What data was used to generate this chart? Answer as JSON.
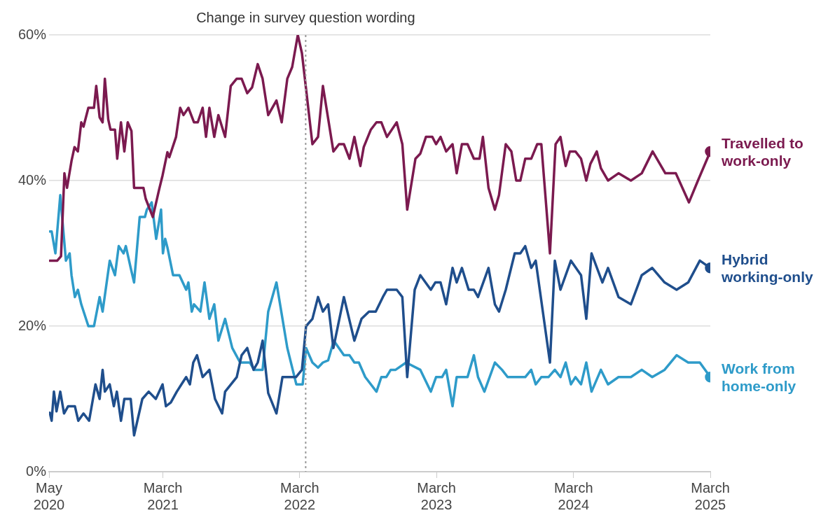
{
  "chart_data": {
    "type": "line",
    "xlim": [
      "2020-05-01",
      "2025-03-01"
    ],
    "xticks": [
      {
        "value": "2020-05-01",
        "label": "May 2020"
      },
      {
        "value": "2021-03-01",
        "label": "March 2021"
      },
      {
        "value": "2022-03-01",
        "label": "March 2022"
      },
      {
        "value": "2023-03-01",
        "label": "March 2023"
      },
      {
        "value": "2024-03-01",
        "label": "March 2024"
      },
      {
        "value": "2025-03-01",
        "label": "March 2025"
      }
    ],
    "ylim": [
      0,
      60
    ],
    "yticks": [
      {
        "value": 0,
        "label": "0%"
      },
      {
        "value": 20,
        "label": "20%"
      },
      {
        "value": 40,
        "label": "40%"
      },
      {
        "value": 60,
        "label": "60%"
      }
    ],
    "grid": "y",
    "legend": false,
    "ref_lines": [
      {
        "axis": "x",
        "value": "2022-03-17",
        "label": "Change in survey question wording",
        "color": "#999999",
        "line_style": "dotted"
      }
    ],
    "series": [
      {
        "name": "Travelled to work-only",
        "color": "#7b1a4f",
        "x": [
          "2020-05-03",
          "2020-05-23",
          "2020-06-02",
          "2020-06-11",
          "2020-06-18",
          "2020-06-30",
          "2020-07-08",
          "2020-07-17",
          "2020-07-26",
          "2020-08-01",
          "2020-08-14",
          "2020-08-29",
          "2020-09-04",
          "2020-09-13",
          "2020-09-21",
          "2020-09-27",
          "2020-10-06",
          "2020-10-12",
          "2020-10-24",
          "2020-10-30",
          "2020-11-09",
          "2020-11-18",
          "2020-11-27",
          "2020-12-07",
          "2020-12-14",
          "2021-01-08",
          "2021-01-14",
          "2021-02-02",
          "2021-02-11",
          "2021-02-19",
          "2021-02-28",
          "2021-03-13",
          "2021-03-18",
          "2021-04-05",
          "2021-04-16",
          "2021-04-25",
          "2021-05-08",
          "2021-05-23",
          "2021-06-02",
          "2021-06-15",
          "2021-06-24",
          "2021-07-03",
          "2021-07-16",
          "2021-07-27",
          "2021-08-14",
          "2021-08-29",
          "2021-09-14",
          "2021-09-27",
          "2021-10-12",
          "2021-10-25",
          "2021-11-09",
          "2021-11-22",
          "2021-12-07",
          "2021-12-29",
          "2022-01-12",
          "2022-01-27",
          "2022-02-09",
          "2022-02-24",
          "2022-03-07",
          "2022-04-04",
          "2022-04-19",
          "2022-05-02",
          "2022-05-30",
          "2022-06-14",
          "2022-06-27",
          "2022-07-12",
          "2022-07-25",
          "2022-08-10",
          "2022-08-19",
          "2022-09-07",
          "2022-09-22",
          "2022-10-05",
          "2022-10-20",
          "2022-11-15",
          "2022-11-30",
          "2022-12-13",
          "2023-01-04",
          "2023-01-17",
          "2023-02-01",
          "2023-02-18",
          "2023-02-28",
          "2023-03-12",
          "2023-03-27",
          "2023-04-13",
          "2023-04-24",
          "2023-05-08",
          "2023-05-23",
          "2023-06-09",
          "2023-06-24",
          "2023-07-03",
          "2023-07-18",
          "2023-08-04",
          "2023-08-15",
          "2023-09-02",
          "2023-09-17",
          "2023-09-30",
          "2023-10-11",
          "2023-10-24",
          "2023-11-09",
          "2023-11-25",
          "2023-12-06",
          "2023-12-29",
          "2024-01-13",
          "2024-01-26",
          "2024-02-09",
          "2024-02-20",
          "2024-03-06",
          "2024-03-21",
          "2024-04-04",
          "2024-04-15",
          "2024-05-02",
          "2024-05-13",
          "2024-06-01",
          "2024-06-29",
          "2024-08-01",
          "2024-08-30",
          "2024-09-28",
          "2024-11-01",
          "2024-11-29",
          "2025-01-03",
          "2025-01-27",
          "2025-03-01"
        ],
        "values": [
          29,
          29,
          29.6,
          41,
          39,
          42.7,
          44.6,
          44,
          48,
          47.4,
          50,
          50,
          53,
          48.7,
          48,
          54,
          48.4,
          47,
          47,
          43,
          48,
          44,
          48,
          46.8,
          39,
          39,
          37.5,
          35,
          37,
          38.8,
          40.7,
          43.9,
          43.2,
          46,
          50,
          49,
          50,
          48,
          48,
          50,
          46,
          50,
          46,
          49,
          46,
          53,
          54,
          54,
          52,
          52.8,
          56,
          54,
          49,
          51,
          48,
          54,
          55.6,
          60,
          57.5,
          45,
          46,
          53,
          44,
          45,
          45,
          43,
          46,
          42,
          44.6,
          47,
          48,
          48,
          46,
          48,
          45,
          36,
          43,
          43.7,
          46,
          46,
          45,
          46,
          44,
          45,
          41,
          45,
          45,
          43,
          43,
          46,
          39,
          36,
          38,
          45,
          44,
          40,
          40,
          43,
          43,
          45,
          45,
          30,
          45,
          46,
          42,
          44,
          44,
          43,
          40,
          42.3,
          44,
          41.7,
          40,
          41,
          40,
          41,
          44,
          41,
          41,
          37,
          40,
          44
        ]
      },
      {
        "name": "Hybrid working-only",
        "color": "#1f4e8c",
        "x": [
          "2020-05-03",
          "2020-05-08",
          "2020-05-14",
          "2020-05-21",
          "2020-05-31",
          "2020-06-10",
          "2020-06-21",
          "2020-07-09",
          "2020-07-18",
          "2020-08-01",
          "2020-08-16",
          "2020-09-02",
          "2020-09-13",
          "2020-09-21",
          "2020-09-27",
          "2020-10-10",
          "2020-10-21",
          "2020-10-29",
          "2020-11-09",
          "2020-11-18",
          "2020-12-05",
          "2020-12-14",
          "2021-01-05",
          "2021-01-22",
          "2021-02-10",
          "2021-02-28",
          "2021-03-09",
          "2021-03-22",
          "2021-04-07",
          "2021-05-02",
          "2021-05-12",
          "2021-05-21",
          "2021-05-31",
          "2021-06-15",
          "2021-07-03",
          "2021-07-18",
          "2021-08-06",
          "2021-08-14",
          "2021-09-14",
          "2021-09-27",
          "2021-10-12",
          "2021-10-29",
          "2021-11-09",
          "2021-11-22",
          "2021-12-07",
          "2021-12-29",
          "2022-01-14",
          "2022-02-19",
          "2022-03-07",
          "2022-03-18",
          "2022-04-04",
          "2022-04-19",
          "2022-05-02",
          "2022-05-16",
          "2022-05-30",
          "2022-06-27",
          "2022-07-25",
          "2022-08-13",
          "2022-09-02",
          "2022-09-20",
          "2022-10-09",
          "2022-10-20",
          "2022-11-15",
          "2022-11-30",
          "2022-12-13",
          "2023-01-02",
          "2023-01-17",
          "2023-02-14",
          "2023-02-26",
          "2023-03-12",
          "2023-03-27",
          "2023-04-13",
          "2023-04-24",
          "2023-05-08",
          "2023-05-26",
          "2023-06-09",
          "2023-06-20",
          "2023-07-18",
          "2023-08-04",
          "2023-08-15",
          "2023-09-02",
          "2023-09-26",
          "2023-10-11",
          "2023-10-24",
          "2023-11-09",
          "2023-11-21",
          "2023-12-29",
          "2024-01-11",
          "2024-01-26",
          "2024-02-23",
          "2024-03-21",
          "2024-04-04",
          "2024-04-18",
          "2024-05-17",
          "2024-06-01",
          "2024-06-29",
          "2024-08-01",
          "2024-08-30",
          "2024-09-27",
          "2024-10-30",
          "2024-12-01",
          "2025-01-01",
          "2025-02-01",
          "2025-03-01"
        ],
        "values": [
          8.1,
          7,
          11,
          8.3,
          11,
          8,
          9,
          9,
          7,
          8,
          7,
          12,
          10,
          14,
          11,
          12,
          9,
          11,
          7,
          10,
          10,
          5,
          10,
          11,
          10,
          12,
          9,
          9.5,
          11,
          13,
          12,
          15,
          16,
          13,
          14,
          10,
          8,
          11,
          13,
          16,
          17,
          14,
          15,
          18,
          10.8,
          8,
          13,
          13,
          14,
          20,
          21,
          24,
          22,
          23,
          17,
          24,
          18,
          21,
          22,
          22,
          24,
          25,
          25,
          24,
          13,
          25,
          27,
          25,
          26,
          26,
          23,
          28,
          26,
          28,
          25,
          25,
          24,
          28,
          23,
          22,
          25,
          30,
          30,
          31,
          28,
          29,
          15,
          29,
          25,
          29,
          27,
          21,
          30,
          26,
          28,
          24,
          23,
          27,
          28,
          26,
          25,
          26,
          29,
          28
        ]
      },
      {
        "name": "Work from home-only",
        "color": "#2e9bc9",
        "x": [
          "2020-05-03",
          "2020-05-08",
          "2020-05-18",
          "2020-05-31",
          "2020-06-10",
          "2020-06-15",
          "2020-06-25",
          "2020-06-30",
          "2020-07-09",
          "2020-07-17",
          "2020-07-26",
          "2020-08-14",
          "2020-08-29",
          "2020-09-13",
          "2020-09-21",
          "2020-10-10",
          "2020-10-24",
          "2020-11-03",
          "2020-11-16",
          "2020-11-22",
          "2020-12-05",
          "2020-12-14",
          "2020-12-29",
          "2021-01-12",
          "2021-01-17",
          "2021-01-30",
          "2021-02-11",
          "2021-02-24",
          "2021-03-01",
          "2021-03-07",
          "2021-03-13",
          "2021-03-28",
          "2021-04-14",
          "2021-05-02",
          "2021-05-08",
          "2021-05-17",
          "2021-05-23",
          "2021-06-09",
          "2021-06-20",
          "2021-07-03",
          "2021-07-16",
          "2021-07-27",
          "2021-08-14",
          "2021-09-02",
          "2021-09-23",
          "2021-10-19",
          "2021-10-30",
          "2021-11-22",
          "2021-12-07",
          "2021-12-29",
          "2022-01-27",
          "2022-02-20",
          "2022-03-09",
          "2022-03-18",
          "2022-04-04",
          "2022-04-19",
          "2022-05-02",
          "2022-05-16",
          "2022-05-31",
          "2022-06-27",
          "2022-07-12",
          "2022-07-25",
          "2022-08-06",
          "2022-08-23",
          "2022-09-22",
          "2022-10-05",
          "2022-10-18",
          "2022-10-30",
          "2022-11-12",
          "2022-12-10",
          "2023-01-17",
          "2023-02-14",
          "2023-02-28",
          "2023-03-16",
          "2023-03-27",
          "2023-04-13",
          "2023-04-24",
          "2023-05-11",
          "2023-05-23",
          "2023-06-09",
          "2023-06-20",
          "2023-07-07",
          "2023-08-04",
          "2023-08-23",
          "2023-09-07",
          "2023-09-26",
          "2023-10-11",
          "2023-10-24",
          "2023-11-09",
          "2023-11-21",
          "2023-12-06",
          "2023-12-25",
          "2024-01-11",
          "2024-01-26",
          "2024-02-09",
          "2024-02-23",
          "2024-03-06",
          "2024-03-21",
          "2024-04-04",
          "2024-04-18",
          "2024-05-13",
          "2024-06-01",
          "2024-06-29",
          "2024-08-01",
          "2024-08-30",
          "2024-09-27",
          "2024-10-30",
          "2024-12-01",
          "2025-01-01",
          "2025-02-01",
          "2025-03-01"
        ],
        "values": [
          33,
          33,
          30,
          38,
          32,
          29,
          30,
          27,
          24,
          25,
          23,
          20,
          20,
          24,
          22,
          29,
          27,
          31,
          30,
          31,
          28,
          26,
          35,
          35,
          36,
          37,
          32,
          36,
          30,
          32,
          30.8,
          27,
          27,
          25,
          26,
          22,
          23,
          22,
          26,
          21,
          23,
          18,
          21,
          17,
          15,
          15,
          14,
          14,
          22,
          26,
          17,
          12,
          12,
          17,
          15,
          14.3,
          15,
          15.3,
          18,
          16,
          16,
          15,
          15,
          13,
          11,
          13,
          13,
          14,
          14,
          15,
          14,
          11,
          13,
          13,
          14,
          9,
          13,
          13,
          13,
          16,
          13,
          11,
          15,
          14,
          13,
          13,
          13,
          13,
          14,
          12,
          13,
          13,
          14,
          13,
          15,
          12,
          13,
          12,
          15,
          11,
          14,
          12,
          13,
          13,
          14,
          13,
          14,
          16,
          15,
          15,
          13
        ]
      }
    ]
  }
}
